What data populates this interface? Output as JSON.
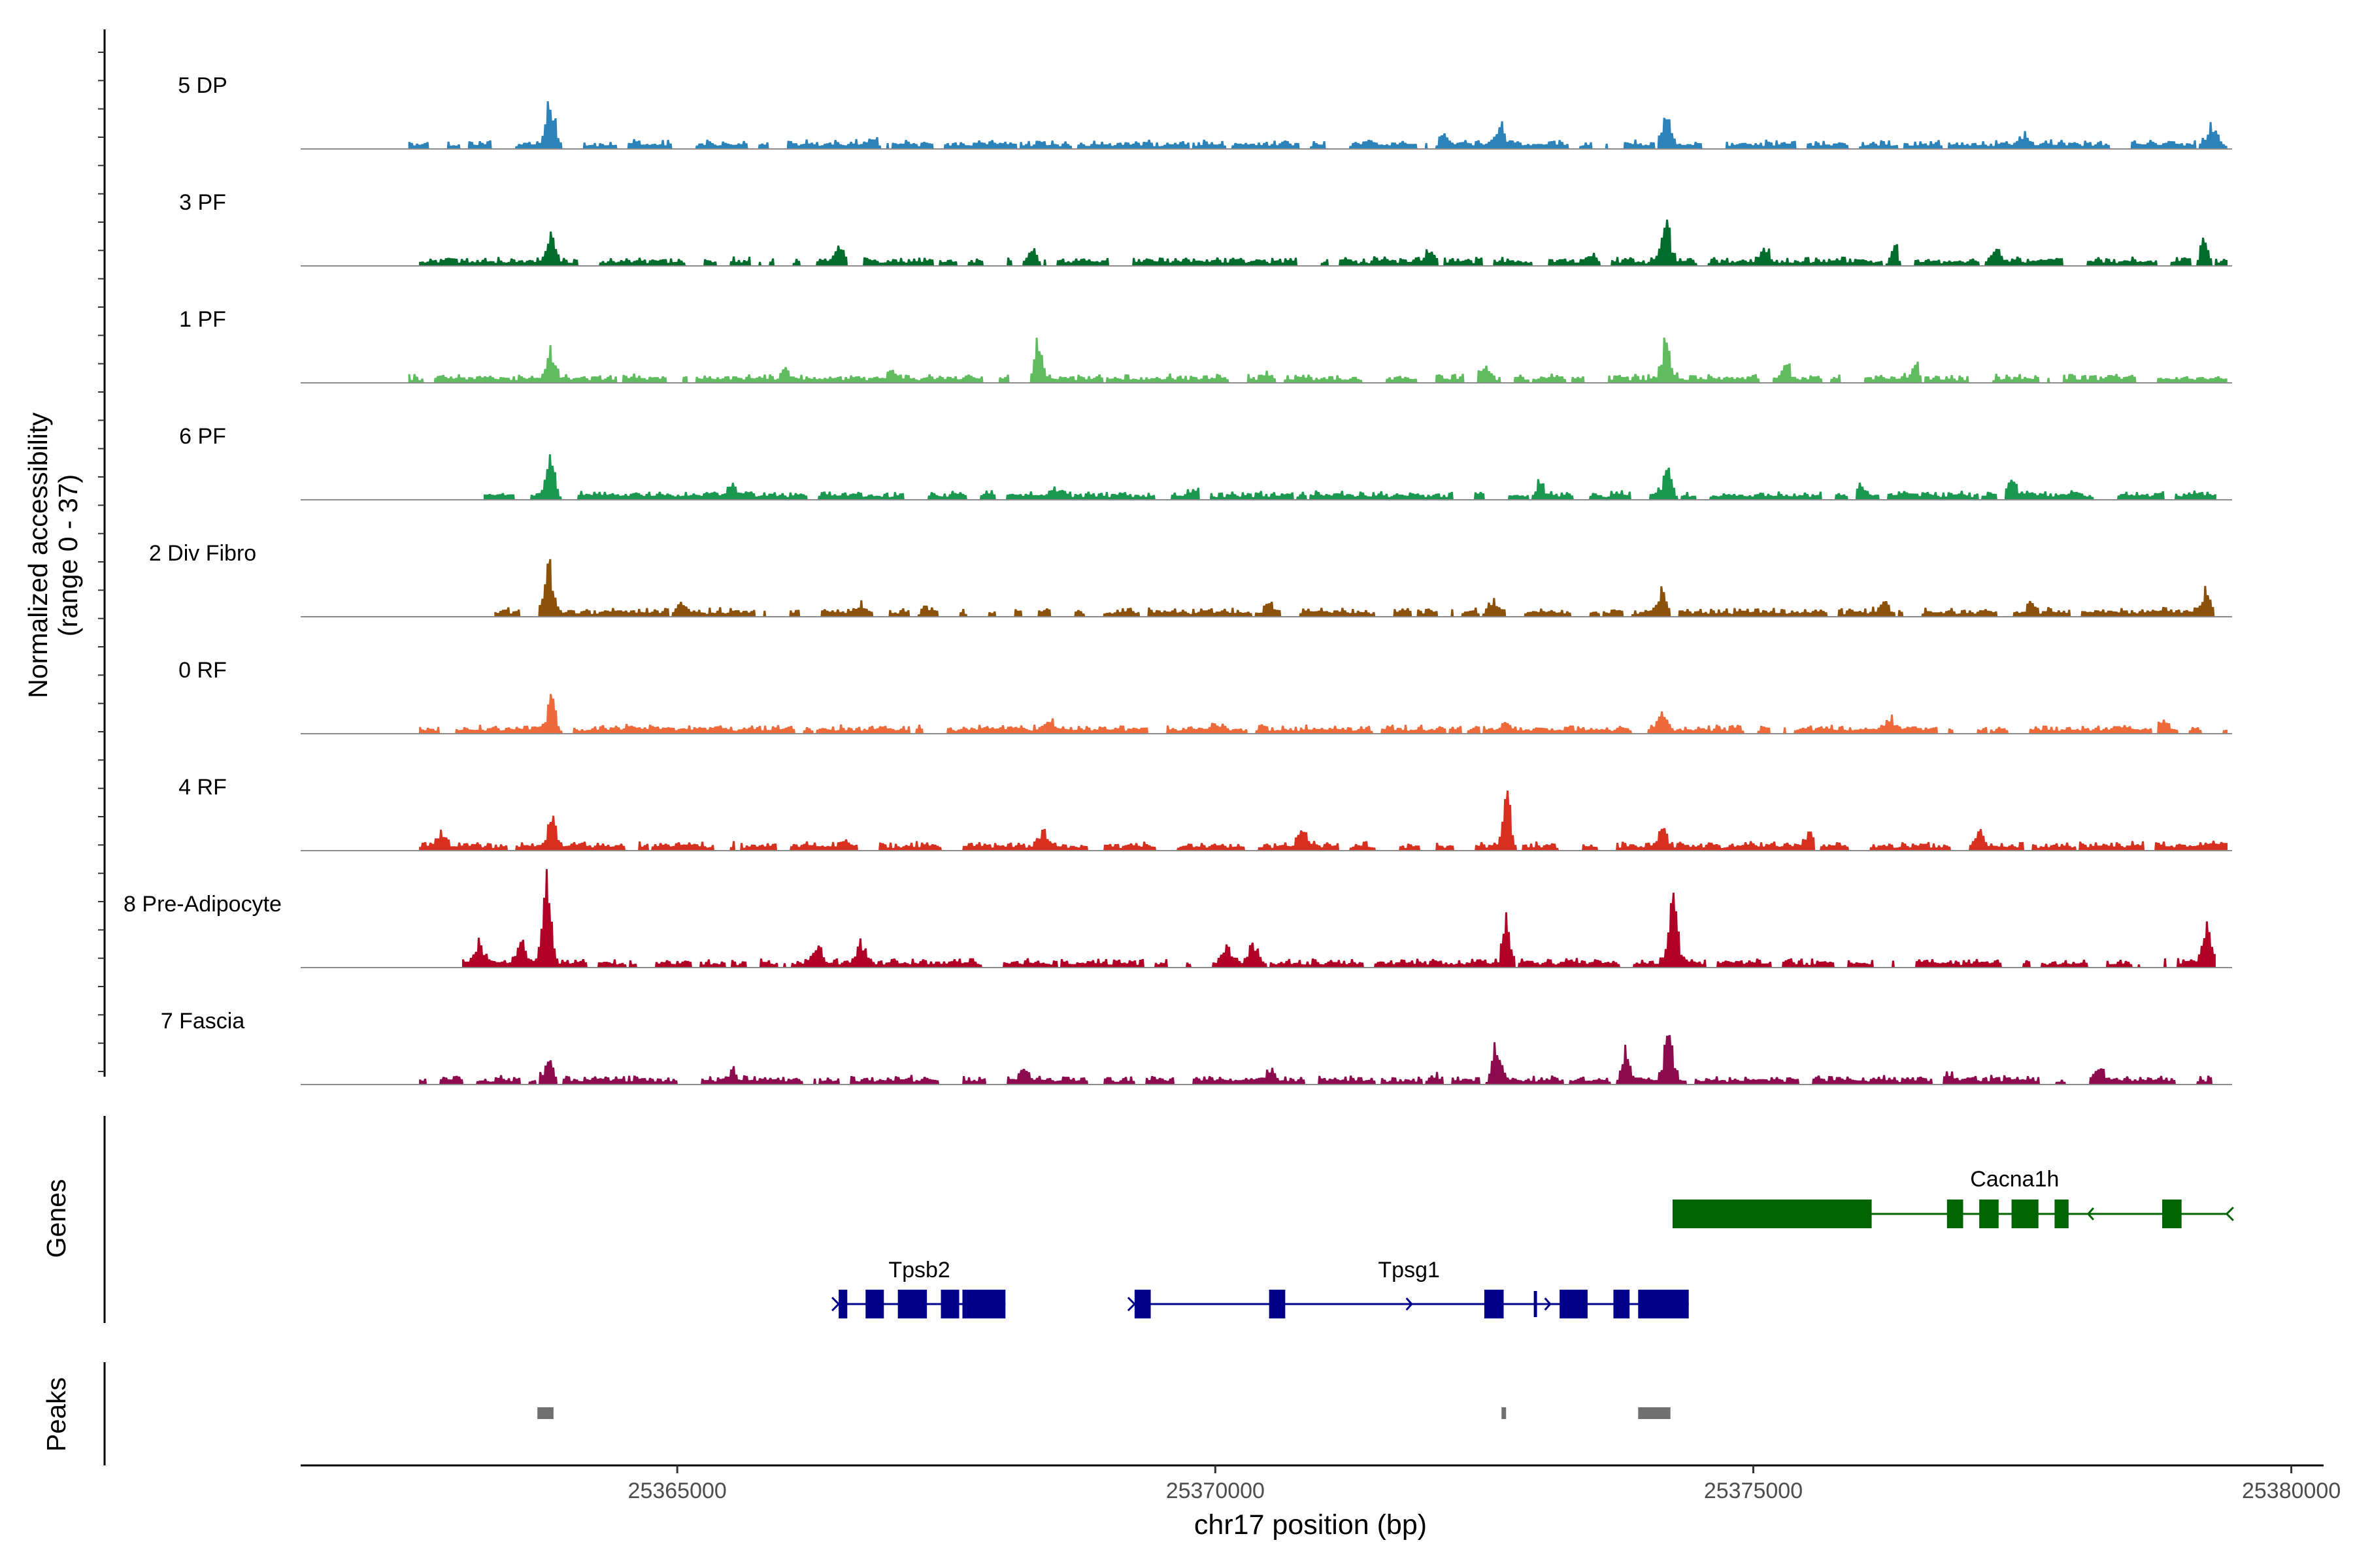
{
  "chart_data": {
    "type": "coverage_track",
    "y_axis_label": "Normalized accessibility",
    "y_axis_range_label": "(range 0 - 37)",
    "y_range": [
      0,
      37
    ],
    "x_label": "chr17 position (bp)",
    "x_range": [
      25361500,
      25380300
    ],
    "x_ticks": [
      25365000,
      25370000,
      25375000,
      25380000
    ],
    "x_tick_labels": [
      "25365000",
      "25370000",
      "25375000",
      "25380000"
    ],
    "tracks": [
      {
        "name": "5 DP",
        "color": "#2b83ba",
        "coverage_start": 25362500,
        "coverage_end": 25379400,
        "peaks": [
          [
            25363810,
            0.78
          ],
          [
            25374180,
            0.52
          ],
          [
            25372650,
            0.3
          ],
          [
            25379250,
            0.28
          ],
          [
            25377500,
            0.15
          ],
          [
            25368600,
            0.14
          ],
          [
            25372100,
            0.14
          ],
          [
            25366800,
            0.1
          ]
        ]
      },
      {
        "name": "3 PF",
        "color": "#006d2c",
        "coverage_start": 25362600,
        "coverage_end": 25379400,
        "peaks": [
          [
            25363820,
            0.43
          ],
          [
            25374180,
            0.68
          ],
          [
            25379180,
            0.45
          ],
          [
            25368300,
            0.3
          ],
          [
            25372000,
            0.3
          ],
          [
            25366500,
            0.28
          ],
          [
            25373500,
            0.24
          ],
          [
            25375100,
            0.24
          ],
          [
            25376300,
            0.26
          ],
          [
            25377250,
            0.28
          ]
        ]
      },
      {
        "name": "1 PF",
        "color": "#5fbd5f",
        "coverage_start": 25362500,
        "coverage_end": 25379400,
        "peaks": [
          [
            25363810,
            0.62
          ],
          [
            25368350,
            0.65
          ],
          [
            25374180,
            0.6
          ],
          [
            25367000,
            0.17
          ],
          [
            25372500,
            0.2
          ],
          [
            25375300,
            0.2
          ],
          [
            25376500,
            0.22
          ],
          [
            25370500,
            0.15
          ],
          [
            25366000,
            0.14
          ]
        ]
      },
      {
        "name": "6 PF",
        "color": "#1a9850",
        "coverage_start": 25363200,
        "coverage_end": 25379300,
        "peaks": [
          [
            25363820,
            0.7
          ],
          [
            25374200,
            0.68
          ],
          [
            25373000,
            0.25
          ],
          [
            25377400,
            0.25
          ],
          [
            25368500,
            0.15
          ],
          [
            25365500,
            0.18
          ],
          [
            25376000,
            0.15
          ],
          [
            25369800,
            0.14
          ]
        ]
      },
      {
        "name": "2 Div Fibro",
        "color": "#8c510a",
        "coverage_start": 25363300,
        "coverage_end": 25379400,
        "peaks": [
          [
            25363800,
            0.78
          ],
          [
            25374150,
            0.44
          ],
          [
            25379200,
            0.35
          ],
          [
            25372550,
            0.24
          ],
          [
            25367300,
            0.22
          ],
          [
            25365000,
            0.2
          ],
          [
            25376200,
            0.18
          ],
          [
            25377600,
            0.24
          ],
          [
            25370500,
            0.18
          ],
          [
            25366700,
            0.14
          ]
        ]
      },
      {
        "name": "0 RF",
        "color": "#ef6a3a",
        "coverage_start": 25362600,
        "coverage_end": 25379400,
        "peaks": [
          [
            25363830,
            0.56
          ],
          [
            25374150,
            0.27
          ],
          [
            25368450,
            0.22
          ],
          [
            25376250,
            0.22
          ],
          [
            25378800,
            0.13
          ],
          [
            25372700,
            0.12
          ],
          [
            25366200,
            0.1
          ],
          [
            25370000,
            0.09
          ]
        ]
      },
      {
        "name": "4 RF",
        "color": "#d7301f",
        "coverage_start": 25362600,
        "coverage_end": 25379400,
        "peaks": [
          [
            25363830,
            0.5
          ],
          [
            25372700,
            0.98
          ],
          [
            25374150,
            0.3
          ],
          [
            25362800,
            0.22
          ],
          [
            25368400,
            0.24
          ],
          [
            25370800,
            0.28
          ],
          [
            25375500,
            0.22
          ],
          [
            25377100,
            0.24
          ],
          [
            25366500,
            0.14
          ],
          [
            25379350,
            0.07
          ]
        ]
      },
      {
        "name": "8 Pre-Adipocyte",
        "color": "#b10026",
        "coverage_start": 25363000,
        "coverage_end": 25379300,
        "peaks": [
          [
            25363780,
            1.7
          ],
          [
            25374250,
            1.3
          ],
          [
            25372700,
            0.8
          ],
          [
            25379200,
            0.7
          ],
          [
            25363150,
            0.35
          ],
          [
            25363550,
            0.35
          ],
          [
            25366300,
            0.35
          ],
          [
            25366700,
            0.35
          ],
          [
            25370100,
            0.35
          ],
          [
            25370350,
            0.35
          ]
        ]
      },
      {
        "name": "7 Fascia",
        "color": "#8c0a4e",
        "coverage_start": 25362600,
        "coverage_end": 25379300,
        "peaks": [
          [
            25363800,
            0.47
          ],
          [
            25372600,
            0.68
          ],
          [
            25374200,
            0.9
          ],
          [
            25373800,
            0.5
          ],
          [
            25378200,
            0.28
          ],
          [
            25376800,
            0.15
          ],
          [
            25368200,
            0.2
          ],
          [
            25370500,
            0.22
          ],
          [
            25365500,
            0.18
          ],
          [
            25372000,
            0.16
          ]
        ]
      }
    ],
    "genes_label": "Genes",
    "genes": [
      {
        "name": "Cacna1h",
        "strand": "-",
        "color": "#006400",
        "start": 25374250,
        "end": 25379400,
        "exons": [
          [
            25374250,
            25376100
          ],
          [
            25376800,
            25376950
          ],
          [
            25377100,
            25377280
          ],
          [
            25377400,
            25377650
          ],
          [
            25377800,
            25377930
          ],
          [
            25378800,
            25378980
          ]
        ]
      },
      {
        "name": "Tpsb2",
        "strand": "+",
        "color": "#00008b",
        "start": 25366500,
        "end": 25368050,
        "exons": [
          [
            25366500,
            25366580
          ],
          [
            25366750,
            25366920
          ],
          [
            25367050,
            25367320
          ],
          [
            25367450,
            25367620
          ],
          [
            25367650,
            25368050
          ]
        ]
      },
      {
        "name": "Tpsg1",
        "strand": "+",
        "color": "#00008b",
        "start": 25369250,
        "end": 25374400,
        "exons": [
          [
            25369250,
            25369400
          ],
          [
            25370500,
            25370650
          ],
          [
            25372500,
            25372680
          ],
          [
            25372960,
            25372990
          ],
          [
            25373200,
            25373460
          ],
          [
            25373700,
            25373850
          ],
          [
            25373930,
            25374400
          ]
        ]
      }
    ],
    "peaks_label": "Peaks",
    "peak_regions": [
      [
        25363700,
        25363850
      ],
      [
        25372660,
        25372700
      ],
      [
        25373930,
        25374230
      ]
    ],
    "peaks_color": "#707070"
  }
}
